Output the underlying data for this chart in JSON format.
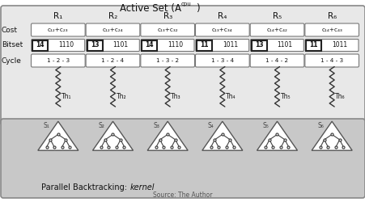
{
  "bg_color": "#e8e8e8",
  "top_box_color": "#e8e8e8",
  "white": "#ffffff",
  "dark": "#222222",
  "columns": [
    "R₁",
    "R₂",
    "R₃",
    "R₄",
    "R₅",
    "R₆"
  ],
  "costs": [
    "c₁₂+c₂₃",
    "c₁₂+c₂₄",
    "c₁₃+c₃₂",
    "c₁₃+c₃₄",
    "c₁₄+c₄₂",
    "c₁₄+c₄₃"
  ],
  "bitset_left": [
    "14",
    "13",
    "14",
    "11",
    "13",
    "11"
  ],
  "bitset_right": [
    "1110",
    "1101",
    "1110",
    "1011",
    "1101",
    "1011"
  ],
  "cycles": [
    "1 - 2 - 3",
    "1 - 2 - 4",
    "1 - 3 - 2",
    "1 - 3 - 4",
    "1 - 4 - 2",
    "1 - 4 - 3"
  ],
  "threads": [
    "Th₁",
    "Th₂",
    "Th₃",
    "Th₄",
    "Th₅",
    "Th₆"
  ],
  "subtrees": [
    "S₁",
    "S₂",
    "S₃",
    "S₄",
    "S₅",
    "S₆"
  ],
  "bottom_label": "Parallel Backtracking: ",
  "bottom_italic": "kernel",
  "source_label": "Source: The Author"
}
